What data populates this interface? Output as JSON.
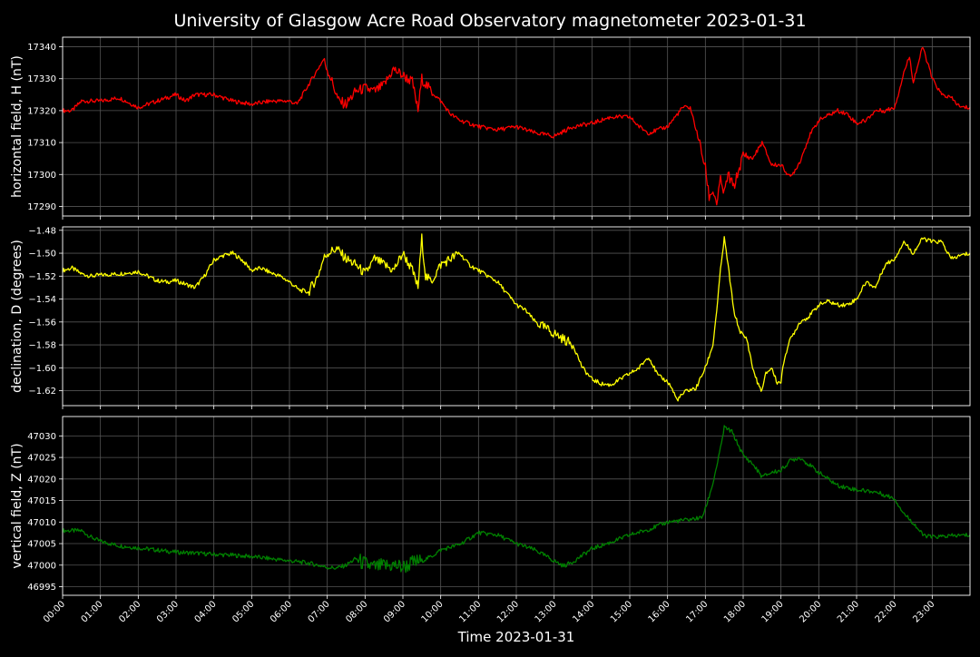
{
  "figure": {
    "title": "University of Glasgow Acre Road Observatory magnetometer 2023-01-31",
    "background": "#000000",
    "grid_color": "#555555",
    "text_color": "#ffffff"
  },
  "chart_data": [
    {
      "type": "line",
      "ylabel": "horizontal field, H (nT)",
      "color": "#ff0000",
      "ylim": [
        17287,
        17343
      ],
      "yticks": [
        17290,
        17300,
        17310,
        17320,
        17330,
        17340
      ],
      "ytick_labels": [
        "17290",
        "17300",
        "17310",
        "17320",
        "17330",
        "17340"
      ],
      "grid": true,
      "x_hours": [
        0,
        0.25,
        0.5,
        0.75,
        1,
        1.5,
        2,
        2.5,
        3,
        3.25,
        3.5,
        4,
        4.5,
        5,
        5.5,
        6,
        6.2,
        6.5,
        6.75,
        6.9,
        7.1,
        7.3,
        7.5,
        7.75,
        8,
        8.25,
        8.5,
        8.75,
        9,
        9.25,
        9.4,
        9.5,
        9.75,
        10,
        10.25,
        10.5,
        11,
        11.5,
        12,
        12.5,
        13,
        13.5,
        14,
        14.5,
        15,
        15.25,
        15.5,
        16,
        16.2,
        16.4,
        16.6,
        16.8,
        17,
        17.1,
        17.2,
        17.3,
        17.4,
        17.5,
        17.6,
        17.75,
        17.9,
        18,
        18.25,
        18.5,
        18.75,
        19,
        19.25,
        19.5,
        19.75,
        20,
        20.5,
        20.75,
        21,
        21.25,
        21.5,
        21.75,
        22,
        22.1,
        22.25,
        22.4,
        22.5,
        22.75,
        23,
        23.25,
        23.5,
        23.75,
        24
      ],
      "y": [
        17320,
        17320,
        17323,
        17323,
        17323,
        17324,
        17321,
        17323,
        17325,
        17323,
        17325,
        17325,
        17323,
        17322,
        17323,
        17323,
        17322,
        17328,
        17333,
        17336,
        17330,
        17323,
        17322,
        17326,
        17327,
        17326,
        17328,
        17333,
        17331,
        17329,
        17320,
        17330,
        17326,
        17323,
        17319,
        17317,
        17315,
        17314,
        17315,
        17313,
        17312,
        17315,
        17316,
        17318,
        17318,
        17315,
        17313,
        17315,
        17318,
        17321,
        17321,
        17312,
        17302,
        17293,
        17295,
        17291,
        17298,
        17294,
        17300,
        17296,
        17302,
        17306,
        17305,
        17310,
        17303,
        17303,
        17299,
        17304,
        17312,
        17317,
        17320,
        17319,
        17316,
        17317,
        17320,
        17320,
        17321,
        17325,
        17332,
        17337,
        17329,
        17340,
        17330,
        17325,
        17324,
        17321,
        17321
      ]
    },
    {
      "type": "line",
      "ylabel": "declination, D (degrees)",
      "color": "#ffff00",
      "ylim": [
        -1.633,
        -1.477
      ],
      "yticks": [
        -1.62,
        -1.6,
        -1.58,
        -1.56,
        -1.54,
        -1.52,
        -1.5,
        -1.48
      ],
      "ytick_labels": [
        "−1.62",
        "−1.60",
        "−1.58",
        "−1.56",
        "−1.54",
        "−1.52",
        "−1.50",
        "−1.48"
      ],
      "grid": true,
      "x_hours": [
        0,
        0.25,
        0.5,
        0.75,
        1,
        1.5,
        2,
        2.25,
        2.5,
        2.75,
        3,
        3.25,
        3.5,
        3.75,
        4,
        4.25,
        4.5,
        4.75,
        5,
        5.25,
        5.5,
        5.75,
        6,
        6.25,
        6.5,
        6.75,
        6.9,
        7,
        7.25,
        7.5,
        7.75,
        8,
        8.25,
        8.5,
        8.75,
        9,
        9.25,
        9.4,
        9.5,
        9.6,
        9.75,
        10,
        10.25,
        10.5,
        10.75,
        11,
        11.25,
        11.5,
        11.75,
        12,
        12.25,
        12.5,
        12.75,
        13,
        13.25,
        13.5,
        13.75,
        14,
        14.25,
        14.5,
        14.75,
        15,
        15.25,
        15.5,
        15.75,
        16,
        16.1,
        16.25,
        16.5,
        16.75,
        17,
        17.2,
        17.3,
        17.4,
        17.5,
        17.6,
        17.75,
        17.9,
        18,
        18.1,
        18.25,
        18.4,
        18.5,
        18.6,
        18.75,
        18.9,
        19,
        19.1,
        19.25,
        19.5,
        19.75,
        20,
        20.25,
        20.5,
        20.75,
        21,
        21.25,
        21.5,
        21.75,
        22,
        22.25,
        22.5,
        22.75,
        23,
        23.25,
        23.5,
        23.75,
        24
      ],
      "y": [
        -1.515,
        -1.513,
        -1.518,
        -1.52,
        -1.519,
        -1.518,
        -1.516,
        -1.52,
        -1.524,
        -1.525,
        -1.524,
        -1.527,
        -1.53,
        -1.52,
        -1.506,
        -1.502,
        -1.5,
        -1.506,
        -1.515,
        -1.513,
        -1.517,
        -1.52,
        -1.525,
        -1.532,
        -1.534,
        -1.52,
        -1.505,
        -1.5,
        -1.496,
        -1.505,
        -1.51,
        -1.518,
        -1.505,
        -1.51,
        -1.515,
        -1.5,
        -1.515,
        -1.53,
        -1.487,
        -1.52,
        -1.525,
        -1.51,
        -1.505,
        -1.5,
        -1.51,
        -1.515,
        -1.52,
        -1.525,
        -1.535,
        -1.545,
        -1.55,
        -1.56,
        -1.565,
        -1.57,
        -1.575,
        -1.58,
        -1.6,
        -1.61,
        -1.614,
        -1.615,
        -1.61,
        -1.605,
        -1.6,
        -1.59,
        -1.607,
        -1.612,
        -1.617,
        -1.628,
        -1.62,
        -1.618,
        -1.6,
        -1.58,
        -1.55,
        -1.515,
        -1.487,
        -1.51,
        -1.55,
        -1.567,
        -1.572,
        -1.575,
        -1.6,
        -1.615,
        -1.62,
        -1.605,
        -1.6,
        -1.613,
        -1.612,
        -1.59,
        -1.575,
        -1.56,
        -1.555,
        -1.545,
        -1.542,
        -1.545,
        -1.545,
        -1.54,
        -1.525,
        -1.53,
        -1.51,
        -1.505,
        -1.49,
        -1.5,
        -1.487,
        -1.49,
        -1.49,
        -1.505,
        -1.502,
        -1.5
      ]
    },
    {
      "type": "line",
      "ylabel": "vertical field, Z (nT)",
      "color": "#008000",
      "ylim": [
        46993,
        47034.5
      ],
      "yticks": [
        46995,
        47000,
        47005,
        47010,
        47015,
        47020,
        47025,
        47030
      ],
      "ytick_labels": [
        "46995",
        "47000",
        "47005",
        "47010",
        "47015",
        "47020",
        "47025",
        "47030"
      ],
      "grid": true,
      "x_hours": [
        0,
        0.25,
        0.5,
        0.75,
        1,
        1.5,
        2,
        2.5,
        3,
        3.5,
        4,
        4.5,
        5,
        5.5,
        6,
        6.5,
        7,
        7.25,
        7.5,
        7.75,
        8,
        8.25,
        8.5,
        8.75,
        9,
        9.25,
        9.5,
        9.75,
        10,
        10.5,
        11,
        11.5,
        12,
        12.5,
        13,
        13.25,
        13.5,
        14,
        14.5,
        15,
        15.5,
        16,
        16.5,
        16.9,
        17,
        17.2,
        17.4,
        17.5,
        17.7,
        18,
        18.25,
        18.5,
        18.75,
        19,
        19.25,
        19.5,
        20,
        20.5,
        21,
        21.5,
        22,
        22.25,
        22.5,
        22.75,
        23,
        23.5,
        24
      ],
      "y": [
        47008,
        47008,
        47008,
        47006.5,
        47005.5,
        47004.5,
        47004,
        47003.5,
        47003,
        47002.8,
        47002.5,
        47002.3,
        47002,
        47001.5,
        47001,
        47000.5,
        46999.5,
        46999.3,
        47000,
        47001.5,
        47000.2,
        46999.5,
        46999.8,
        47000,
        46999.5,
        47000.5,
        47001,
        47002,
        47003.5,
        47004.8,
        47007.5,
        47007,
        47005,
        47003.5,
        47001,
        46999.8,
        47000.8,
        47003.8,
        47005.3,
        47007,
        47008.3,
        47010,
        47010.5,
        47011,
        47013,
        47019,
        47027,
        47032,
        47031,
        47025.5,
        47023.5,
        47020.5,
        47021.5,
        47022,
        47024.3,
        47025,
        47021.5,
        47018.5,
        47017.5,
        47017,
        47015.5,
        47012,
        47009.8,
        47007,
        47006.5,
        47006.8,
        47007
      ]
    }
  ],
  "x_axis": {
    "label": "Time 2023-01-31",
    "range_hours": [
      0,
      24
    ],
    "tick_hours": [
      0,
      1,
      2,
      3,
      4,
      5,
      6,
      7,
      8,
      9,
      10,
      11,
      12,
      13,
      14,
      15,
      16,
      17,
      18,
      19,
      20,
      21,
      22,
      23
    ],
    "tick_labels": [
      "00:00",
      "01:00",
      "02:00",
      "03:00",
      "04:00",
      "05:00",
      "06:00",
      "07:00",
      "08:00",
      "09:00",
      "10:00",
      "11:00",
      "12:00",
      "13:00",
      "14:00",
      "15:00",
      "16:00",
      "17:00",
      "18:00",
      "19:00",
      "20:00",
      "21:00",
      "22:00",
      "23:00"
    ]
  }
}
